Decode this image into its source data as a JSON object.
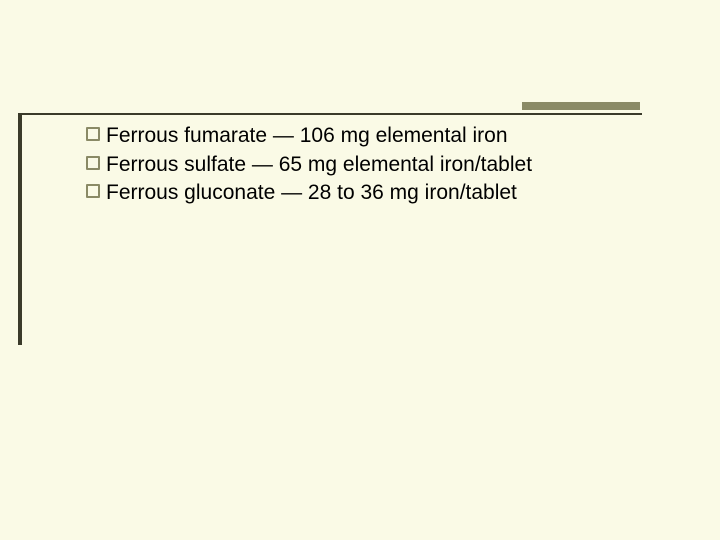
{
  "slide": {
    "background_color": "#fafae6",
    "accent_color": "#8a8a66",
    "line_color": "#3a3a2a",
    "text_color": "#000000",
    "font_size_pt": 16,
    "items": [
      {
        "text": "Ferrous fumarate — 106 mg elemental iron",
        "indent": false
      },
      {
        "text": "Ferrous sulfate — 65 mg elemental iron/tablet",
        "indent": false
      },
      {
        "text": " Ferrous gluconate — 28 to 36 mg iron/tablet",
        "indent": true
      }
    ]
  }
}
